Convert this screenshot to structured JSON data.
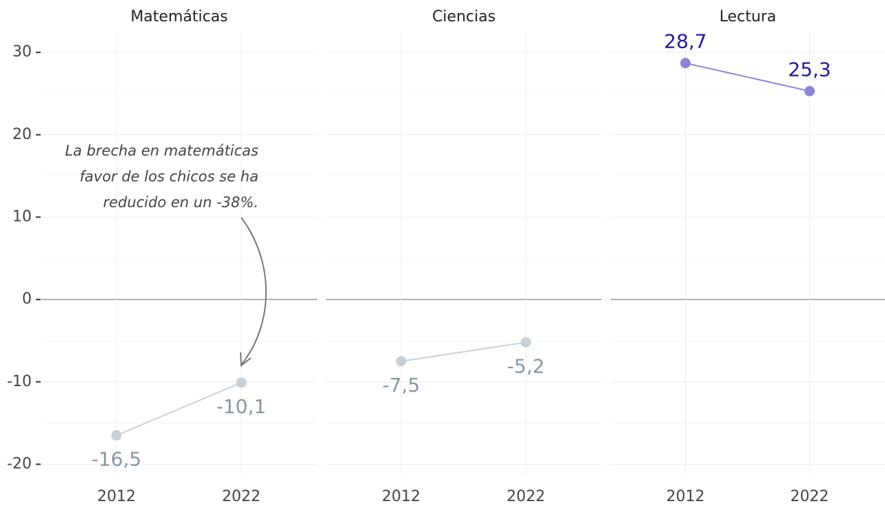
{
  "chart_data": {
    "type": "line",
    "categories": [
      "2012",
      "2022"
    ],
    "ylim": [
      -21.3,
      32.6
    ],
    "yticks": [
      -20,
      -10,
      0,
      10,
      20,
      30
    ],
    "minor_yticks": [
      -15,
      -5,
      5,
      15,
      25
    ],
    "grid": true,
    "zero_line": true,
    "facets": [
      {
        "title": "Matemáticas",
        "values": [
          -16.5,
          -10.1
        ],
        "value_labels": [
          "-16,5",
          "-10,1"
        ],
        "color": "#c8d0d7",
        "label_color": "#8796a5"
      },
      {
        "title": "Ciencias",
        "values": [
          -7.5,
          -5.2
        ],
        "value_labels": [
          "-7,5",
          "-5,2"
        ],
        "color": "#c8d0d7",
        "label_color": "#8796a5"
      },
      {
        "title": "Lectura",
        "values": [
          28.7,
          25.3
        ],
        "value_labels": [
          "28,7",
          "25,3"
        ],
        "color": "#8c86d9",
        "label_color": "#1f1c9c"
      }
    ],
    "annotation": [
      "La brecha en matemáticas",
      "favor de los chicos se ha",
      "reducido en un -38%."
    ]
  }
}
